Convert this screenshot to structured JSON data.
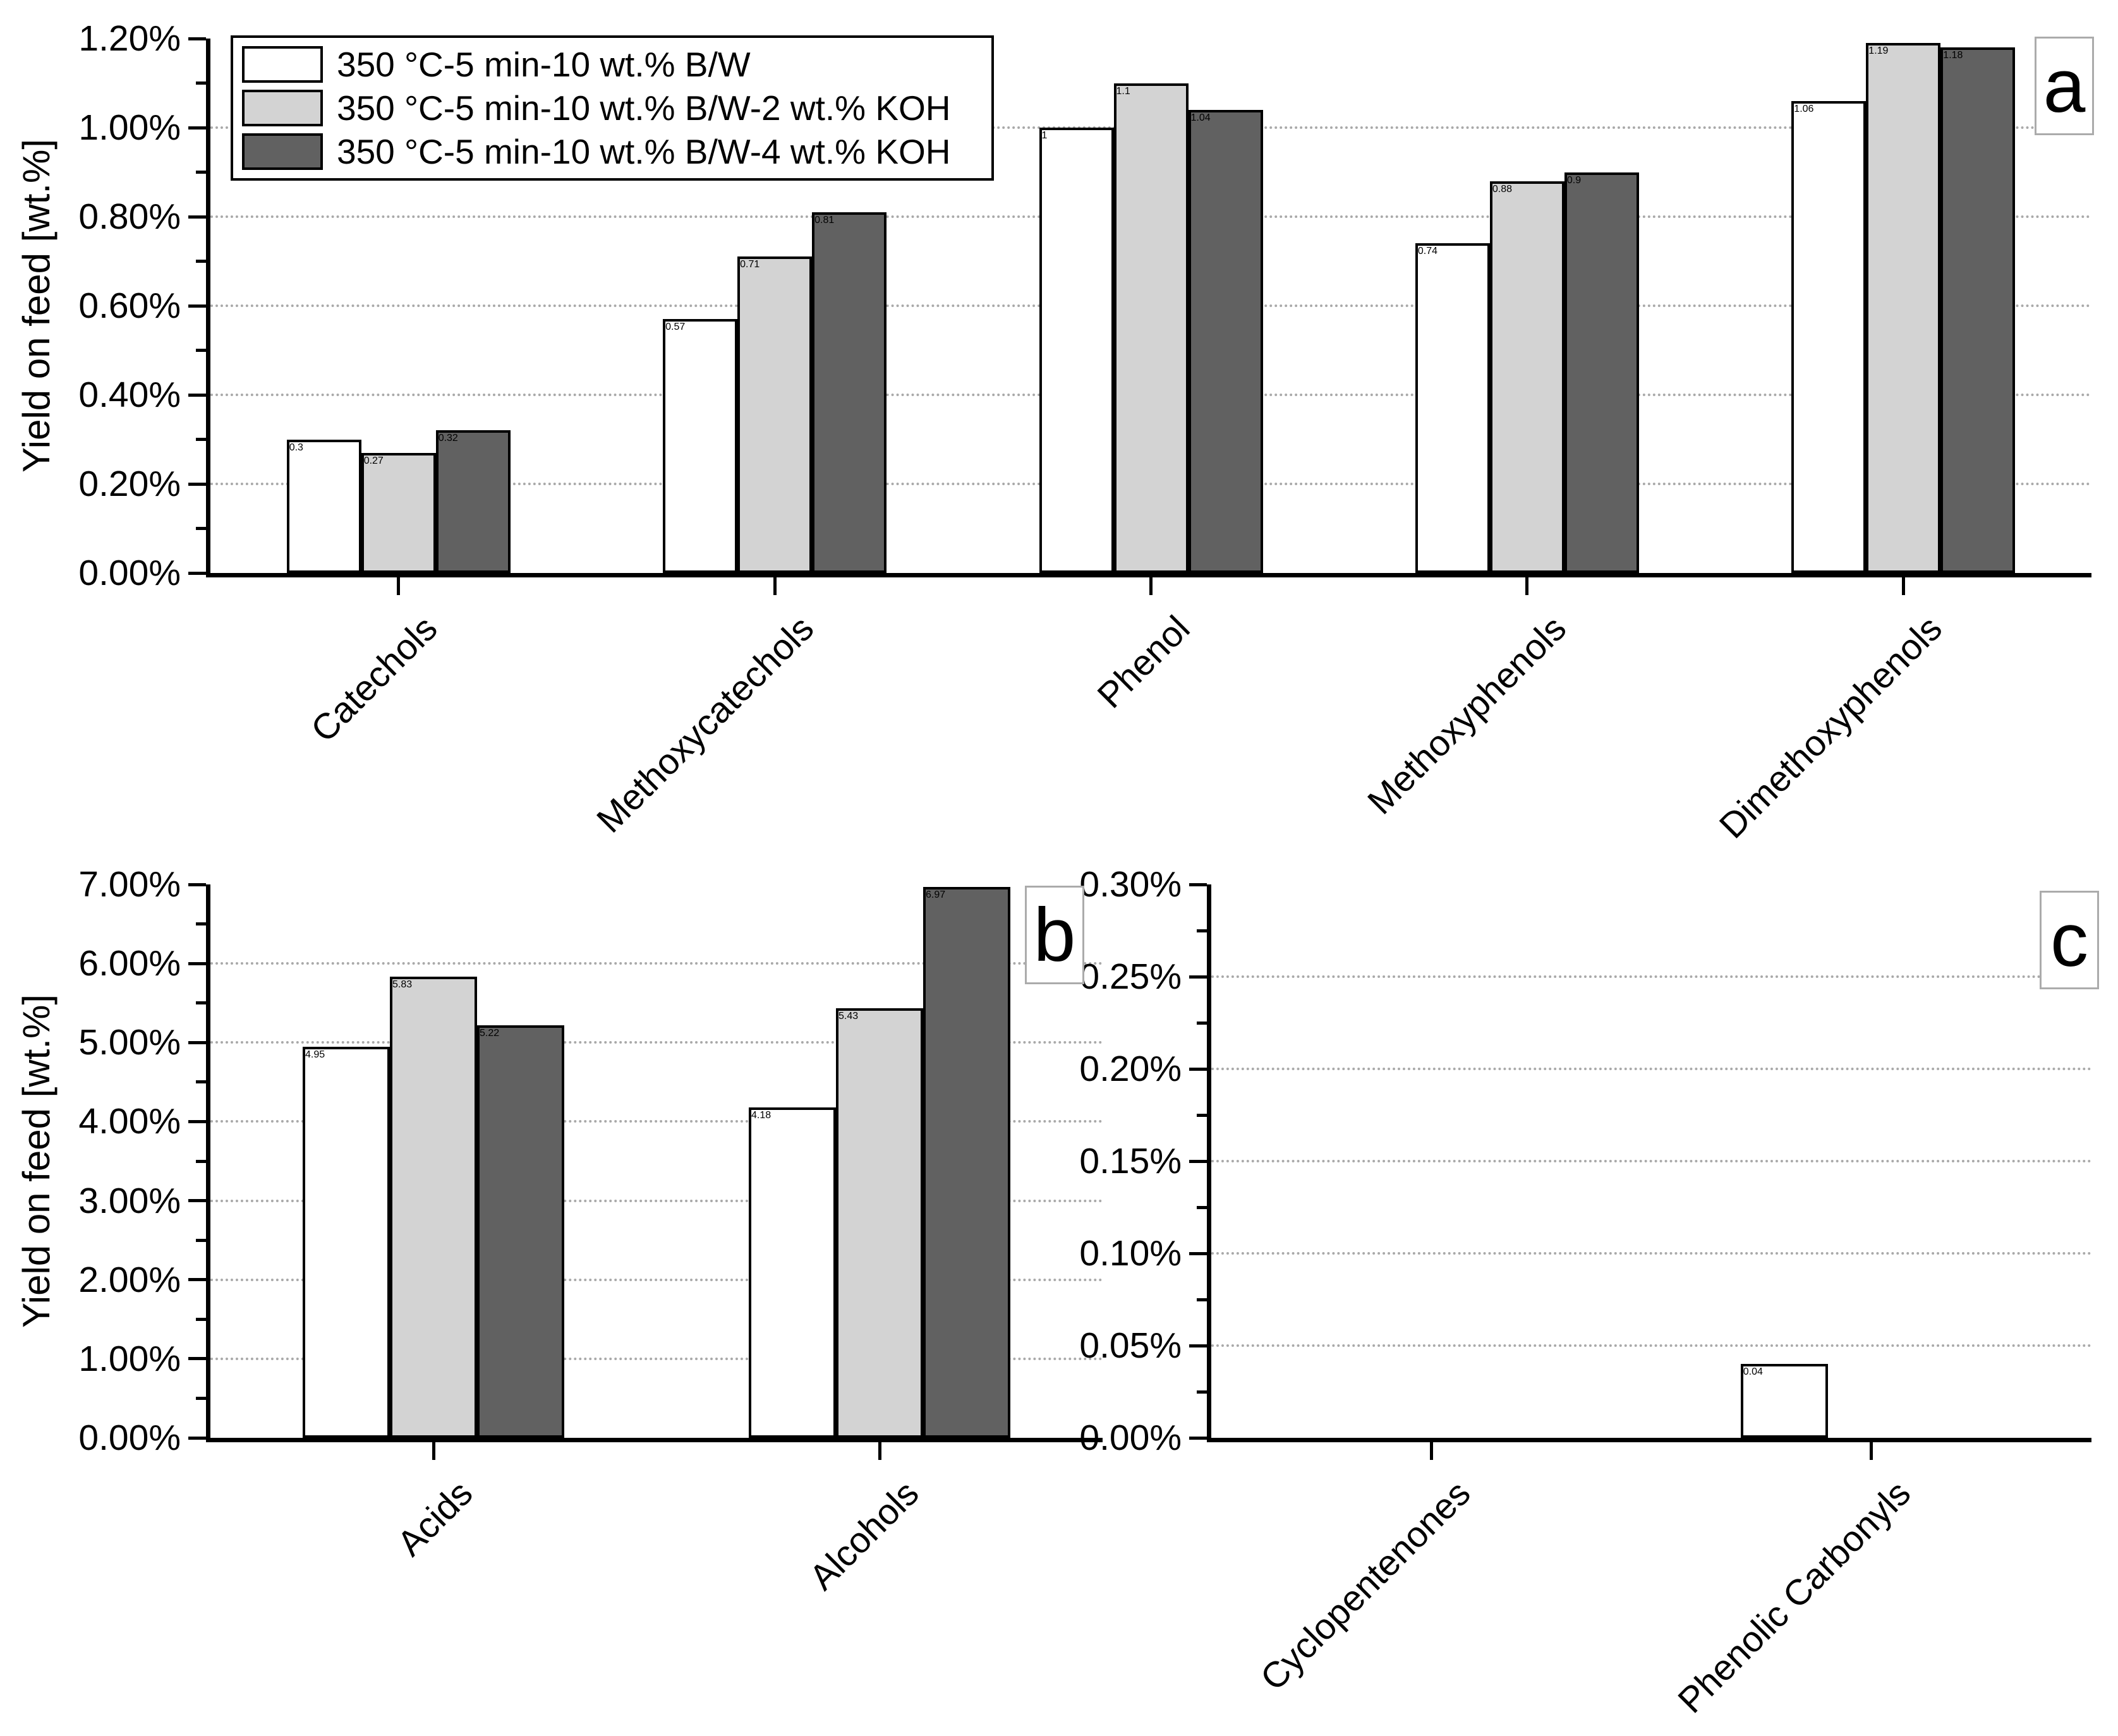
{
  "figure": {
    "colors": {
      "series_white": "#ffffff",
      "series_light_gray": "#d3d3d3",
      "series_dark_gray": "#616161",
      "bar_border": "#000000",
      "gridline": "#a9a9a9",
      "panel_label_border": "#ababab"
    },
    "legend": {
      "items": [
        {
          "label": "350 °C-5 min-10 wt.% B/W",
          "color": "#ffffff"
        },
        {
          "label": "350 °C-5 min-10 wt.% B/W-2 wt.% KOH",
          "color": "#d3d3d3"
        },
        {
          "label": "350 °C-5 min-10 wt.% B/W-4 wt.% KOH",
          "color": "#616161"
        }
      ]
    },
    "panel_letters": [
      "a",
      "b",
      "c"
    ]
  },
  "chart_data": [
    {
      "panel": "a",
      "type": "bar",
      "title": "",
      "xlabel": "",
      "ylabel": "Yield on feed [wt.%]",
      "grid": "horizontal-dotted",
      "legend_position": "top-left-inside",
      "categories": [
        "Catechols",
        "Methoxycatechols",
        "Phenol",
        "Methoxyphenols",
        "Dimethoxyphenols"
      ],
      "series": [
        {
          "name": "350 °C-5 min-10 wt.% B/W",
          "color": "#ffffff",
          "values": [
            0.3,
            0.57,
            1.0,
            0.74,
            1.06
          ]
        },
        {
          "name": "350 °C-5 min-10 wt.% B/W-2 wt.% KOH",
          "color": "#d3d3d3",
          "values": [
            0.27,
            0.71,
            1.1,
            0.88,
            1.19
          ]
        },
        {
          "name": "350 °C-5 min-10 wt.% B/W-4 wt.% KOH",
          "color": "#616161",
          "values": [
            0.32,
            0.81,
            1.04,
            0.9,
            1.18
          ]
        }
      ],
      "ylim": [
        0,
        1.2
      ],
      "ytick_labels": [
        "0.00%",
        "0.20%",
        "0.40%",
        "0.60%",
        "0.80%",
        "1.00%",
        "1.20%"
      ]
    },
    {
      "panel": "b",
      "type": "bar",
      "title": "",
      "xlabel": "",
      "ylabel": "Yield on feed [wt.%]",
      "grid": "horizontal-dotted",
      "categories": [
        "Acids",
        "Alcohols"
      ],
      "series": [
        {
          "name": "350 °C-5 min-10 wt.% B/W",
          "color": "#ffffff",
          "values": [
            4.95,
            4.18
          ]
        },
        {
          "name": "350 °C-5 min-10 wt.% B/W-2 wt.% KOH",
          "color": "#d3d3d3",
          "values": [
            5.83,
            5.43
          ]
        },
        {
          "name": "350 °C-5 min-10 wt.% B/W-4 wt.% KOH",
          "color": "#616161",
          "values": [
            5.22,
            6.97
          ]
        }
      ],
      "ylim": [
        0,
        7
      ],
      "ytick_labels": [
        "0.00%",
        "1.00%",
        "2.00%",
        "3.00%",
        "4.00%",
        "5.00%",
        "6.00%",
        "7.00%"
      ]
    },
    {
      "panel": "c",
      "type": "bar",
      "title": "",
      "xlabel": "",
      "ylabel": "",
      "grid": "horizontal-dotted",
      "categories": [
        "Cyclopentenones",
        "Phenolic Carbonyls"
      ],
      "series": [
        {
          "name": "350 °C-5 min-10 wt.% B/W",
          "color": "#ffffff",
          "values": [
            0,
            0.04
          ]
        },
        {
          "name": "350 °C-5 min-10 wt.% B/W-2 wt.% KOH",
          "color": "#d3d3d3",
          "values": [
            0,
            0
          ]
        },
        {
          "name": "350 °C-5 min-10 wt.% B/W-4 wt.% KOH",
          "color": "#616161",
          "values": [
            0,
            0
          ]
        }
      ],
      "ylim": [
        0,
        0.3
      ],
      "ytick_labels": [
        "0.00%",
        "0.05%",
        "0.10%",
        "0.15%",
        "0.20%",
        "0.25%",
        "0.30%"
      ]
    }
  ]
}
